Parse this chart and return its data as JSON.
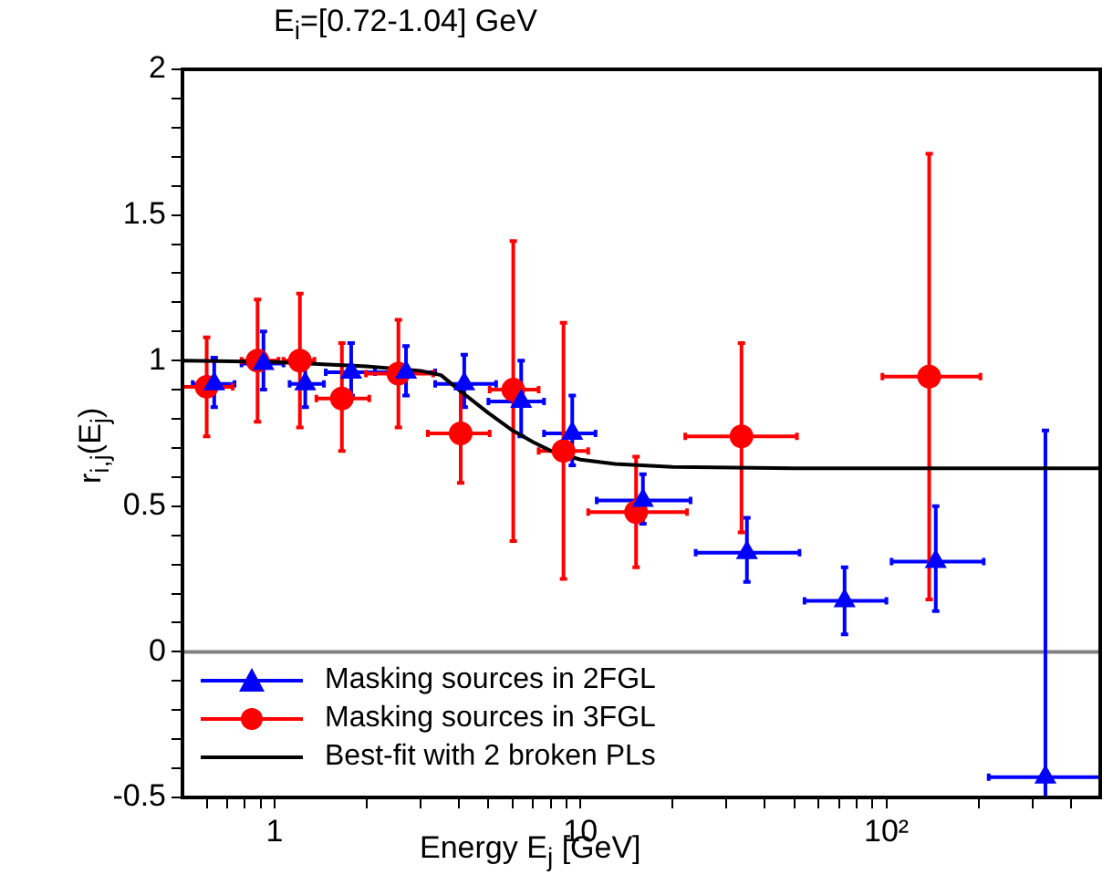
{
  "chart_data": {
    "type": "scatter",
    "title": "E$_{i}$=[0.72-1.04] GeV",
    "xlabel": "Energy E$_{j}$ [GeV]",
    "ylabel": "r$_{i,j}$(E$_{j}$)",
    "log": "x",
    "grid": false,
    "legend": "bottom left",
    "xlim": [
      0.5,
      500
    ],
    "ylim": [
      -0.5,
      2
    ],
    "xticks": [
      {
        "value": 0.6,
        "label": null
      },
      {
        "value": 0.7,
        "label": null
      },
      {
        "value": 0.8,
        "label": null
      },
      {
        "value": 0.9,
        "label": null
      },
      1,
      {
        "value": 2,
        "label": null
      },
      {
        "value": 3,
        "label": null
      },
      {
        "value": 4,
        "label": null
      },
      {
        "value": 5,
        "label": null
      },
      {
        "value": 6,
        "label": null
      },
      {
        "value": 7,
        "label": null
      },
      {
        "value": 8,
        "label": null
      },
      {
        "value": 9,
        "label": null
      },
      10,
      {
        "value": 20,
        "label": null
      },
      {
        "value": 30,
        "label": null
      },
      {
        "value": 40,
        "label": null
      },
      {
        "value": 50,
        "label": null
      },
      {
        "value": 60,
        "label": null
      },
      {
        "value": 70,
        "label": null
      },
      {
        "value": 80,
        "label": null
      },
      {
        "value": 90,
        "label": null
      },
      {
        "value": 100,
        "label": "10²"
      },
      {
        "value": 200,
        "label": null
      },
      {
        "value": 300,
        "label": null
      },
      {
        "value": 400,
        "label": null
      }
    ],
    "yticks": [
      -0.5,
      {
        "value": -0.4,
        "label": null
      },
      {
        "value": -0.3,
        "label": null
      },
      {
        "value": -0.2,
        "label": null
      },
      {
        "value": -0.1,
        "label": null
      },
      0,
      {
        "value": 0.1,
        "label": null
      },
      {
        "value": 0.2,
        "label": null
      },
      {
        "value": 0.3,
        "label": null
      },
      {
        "value": 0.4,
        "label": null
      },
      0.5,
      {
        "value": 0.6,
        "label": null
      },
      {
        "value": 0.7,
        "label": null
      },
      {
        "value": 0.8,
        "label": null
      },
      {
        "value": 0.9,
        "label": null
      },
      1,
      {
        "value": 1.1,
        "label": null
      },
      {
        "value": 1.2,
        "label": null
      },
      {
        "value": 1.3,
        "label": null
      },
      {
        "value": 1.4,
        "label": null
      },
      1.5,
      {
        "value": 1.6,
        "label": null
      },
      {
        "value": 1.7,
        "label": null
      },
      {
        "value": 1.8,
        "label": null
      },
      {
        "value": 1.9,
        "label": null
      },
      2
    ],
    "ref_lines": [
      {
        "axis": "y",
        "value": 0,
        "color": "#808080"
      }
    ],
    "series": [
      {
        "name": "Masking sources in 2FGL",
        "marker": "triangle",
        "color": "#0000ff",
        "x": [
          0.635,
          0.92,
          1.26,
          1.78,
          2.69,
          4.17,
          6.4,
          9.4,
          16,
          35,
          73,
          145,
          331
        ],
        "values": [
          0.92,
          0.99,
          0.92,
          0.96,
          0.96,
          0.92,
          0.86,
          0.75,
          0.52,
          0.34,
          0.175,
          0.31,
          -0.43
        ],
        "errors": [
          [
            0.84,
            1.01
          ],
          [
            0.9,
            1.1
          ],
          [
            0.84,
            1.01
          ],
          [
            0.88,
            1.06
          ],
          [
            0.88,
            1.05
          ],
          [
            0.84,
            1.02
          ],
          [
            0.74,
            1.0
          ],
          [
            0.64,
            0.88
          ],
          [
            0.44,
            0.61
          ],
          [
            0.24,
            0.46
          ],
          [
            0.06,
            0.29
          ],
          [
            0.14,
            0.5
          ],
          [
            -0.5,
            0.76
          ]
        ],
        "xerrors": [
          [
            0.54,
            0.74
          ],
          [
            0.78,
            1.07
          ],
          [
            1.12,
            1.45
          ],
          [
            1.47,
            2.13
          ],
          [
            2.13,
            3.35
          ],
          [
            3.35,
            5.3
          ],
          [
            5.0,
            7.6
          ],
          [
            7.6,
            11.2
          ],
          [
            11.3,
            22.9
          ],
          [
            23.8,
            52
          ],
          [
            54,
            100
          ],
          [
            104,
            208
          ],
          [
            216,
            500
          ]
        ]
      },
      {
        "name": "Masking sources in 3FGL",
        "marker": "circle",
        "color": "#ff0000",
        "x": [
          0.6,
          0.88,
          1.21,
          1.66,
          2.54,
          4.06,
          6.03,
          8.8,
          15.2,
          33.6,
          138
        ],
        "values": [
          0.91,
          1.0,
          1.0,
          0.87,
          0.955,
          0.75,
          0.9,
          0.69,
          0.48,
          0.74,
          0.945
        ],
        "errors": [
          [
            0.74,
            1.08
          ],
          [
            0.79,
            1.21
          ],
          [
            0.77,
            1.23
          ],
          [
            0.69,
            1.06
          ],
          [
            0.77,
            1.14
          ],
          [
            0.58,
            0.92
          ],
          [
            0.38,
            1.41
          ],
          [
            0.25,
            1.13
          ],
          [
            0.29,
            0.67
          ],
          [
            0.41,
            1.06
          ],
          [
            0.18,
            1.71
          ]
        ],
        "xerrors": [
          [
            0.5,
            0.73
          ],
          [
            0.78,
            1.03
          ],
          [
            1.07,
            1.35
          ],
          [
            1.37,
            2.04
          ],
          [
            1.99,
            3.3
          ],
          [
            3.17,
            5.05
          ],
          [
            5.05,
            7.3
          ],
          [
            7.3,
            10.6
          ],
          [
            10.6,
            22.3
          ],
          [
            22,
            51
          ],
          [
            97,
            203
          ]
        ]
      },
      {
        "name": "Best-fit with 2 broken PLs",
        "type": "line",
        "marker": "none",
        "color": "#000000",
        "x": [
          0.5,
          1,
          2,
          3,
          3.5,
          4,
          5,
          6,
          7,
          8,
          10,
          13,
          20,
          50,
          500
        ],
        "values": [
          1.0,
          0.995,
          0.98,
          0.965,
          0.95,
          0.9,
          0.82,
          0.76,
          0.72,
          0.69,
          0.66,
          0.645,
          0.635,
          0.63,
          0.63
        ]
      }
    ]
  }
}
